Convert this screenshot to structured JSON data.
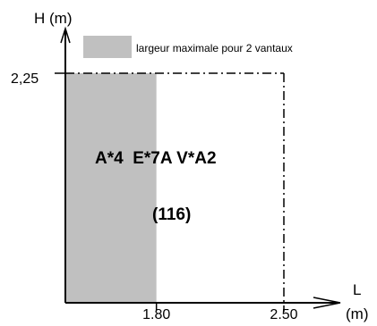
{
  "colors": {
    "zone_fill": "#c0c0c0",
    "axis": "#000000",
    "envelope": "#000000"
  },
  "chart_data": {
    "type": "area",
    "ylabel": "H (m)",
    "xlabel_line1": "L",
    "xlabel_line2": "(m)",
    "x_ticks": [
      "1.80",
      "2.50"
    ],
    "y_ticks": [
      "2,25"
    ],
    "x_origin": 1.3,
    "x_max_envelope": 2.5,
    "y_origin": 0,
    "y_max_envelope": 2.25,
    "shaded_max_width": 1.8,
    "legend": {
      "label": "largeur maximale pour 2 vantaux"
    },
    "annotations": {
      "classification": "A*4  E*7A V*A2",
      "value": "(116)"
    }
  }
}
